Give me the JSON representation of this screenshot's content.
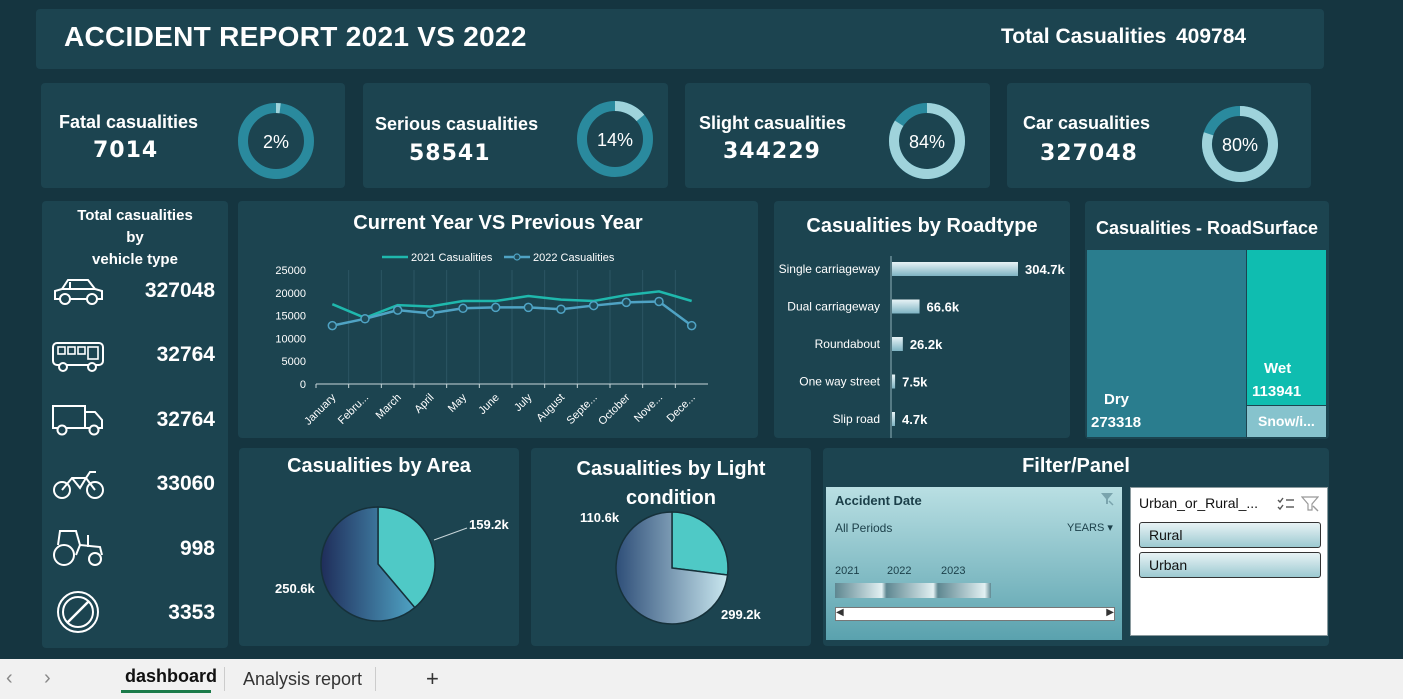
{
  "header": {
    "title": "ACCIDENT REPORT 2021 VS 2022",
    "total_label": "Total Casualities",
    "total_value": "409784"
  },
  "kpis": [
    {
      "label": "Fatal casualities",
      "value": "7014",
      "pct": "2%",
      "fraction": 0.02
    },
    {
      "label": "Serious casualities",
      "value": "58541",
      "pct": "14%",
      "fraction": 0.14
    },
    {
      "label": "Slight casualities",
      "value": "344229",
      "pct": "84%",
      "fraction": 0.84
    },
    {
      "label": "Car casualities",
      "value": "327048",
      "pct": "80%",
      "fraction": 0.8
    }
  ],
  "vehicle": {
    "title_line1": "Total casualities",
    "title_line2": "by",
    "title_line3": "vehicle type",
    "rows": [
      {
        "icon": "car-icon",
        "value": "327048"
      },
      {
        "icon": "bus-icon",
        "value": "32764"
      },
      {
        "icon": "truck-icon",
        "value": "32764"
      },
      {
        "icon": "motorcycle-icon",
        "value": "33060"
      },
      {
        "icon": "tractor-icon",
        "value": "998"
      },
      {
        "icon": "no-entry-icon",
        "value": "3353"
      }
    ]
  },
  "line_chart": {
    "title": "Current Year VS Previous Year"
  },
  "roadtype": {
    "title": "Casualities by Roadtype"
  },
  "surface": {
    "title": "Casualities - RoadSurface",
    "dry_label": "Dry",
    "dry_value": "273318",
    "wet_label": "Wet",
    "wet_value": "113941",
    "snow_label": "Snow/i..."
  },
  "area": {
    "title": "Casualities by Area"
  },
  "light": {
    "title_line1": "Casualities by Light",
    "title_line2": "condition"
  },
  "filter": {
    "title": "Filter/Panel",
    "date_slicer": {
      "title": "Accident Date",
      "period": "All Periods",
      "level": "YEARS",
      "years": [
        "2021",
        "2022",
        "2023"
      ]
    },
    "area_slicer": {
      "title": "Urban_or_Rural_...",
      "items": [
        "Rural",
        "Urban"
      ]
    }
  },
  "tabs": {
    "items": [
      "dashboard",
      "Analysis report"
    ],
    "add": "+"
  },
  "colors": {
    "bg": "#153540",
    "panel": "#1c4450",
    "teal": "#1fb8ad",
    "line2022": "#4fa3c4",
    "accent": "#4fc9c6"
  },
  "chart_data": [
    {
      "type": "line",
      "title": "Current Year VS Previous Year",
      "x": [
        "January",
        "Febru...",
        "March",
        "April",
        "May",
        "June",
        "July",
        "August",
        "Septe...",
        "October",
        "Nove...",
        "Dece..."
      ],
      "series": [
        {
          "name": "2021 Casualities",
          "values": [
            17500,
            14500,
            17300,
            17000,
            18200,
            18200,
            19300,
            18500,
            18200,
            19500,
            20300,
            18200
          ]
        },
        {
          "name": "2022 Casualities",
          "values": [
            12800,
            14300,
            16200,
            15500,
            16600,
            16800,
            16800,
            16400,
            17200,
            17900,
            18100,
            12800
          ]
        }
      ],
      "yticks": [
        "0",
        "5000",
        "10000",
        "15000",
        "20000",
        "25000"
      ],
      "ylim": [
        0,
        25000
      ]
    },
    {
      "type": "bar",
      "title": "Casualities by Roadtype",
      "categories": [
        "Single carriageway",
        "Dual carriageway",
        "Roundabout",
        "One way street",
        "Slip road"
      ],
      "values": [
        304.7,
        66.6,
        26.2,
        7.5,
        4.7
      ],
      "labels": [
        "304.7k",
        "66.6k",
        "26.2k",
        "7.5k",
        "4.7k"
      ]
    },
    {
      "type": "heatmap",
      "title": "Casualities - RoadSurface",
      "categories": [
        "Dry",
        "Wet",
        "Snow/i..."
      ],
      "values": [
        273318,
        113941,
        null
      ]
    },
    {
      "type": "pie",
      "title": "Casualities by Area",
      "values": [
        159.2,
        250.6
      ],
      "labels": [
        "159.2k",
        "250.6k"
      ]
    },
    {
      "type": "pie",
      "title": "Casualities by Light condition",
      "values": [
        110.6,
        299.2
      ],
      "labels": [
        "110.6k",
        "299.2k"
      ]
    }
  ]
}
